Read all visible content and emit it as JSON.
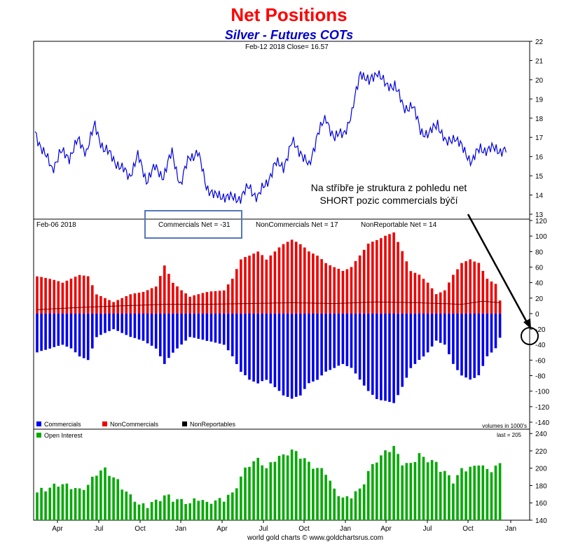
{
  "header": {
    "title": "Net Positions",
    "subtitle": "Silver - Futures COTs"
  },
  "price_panel": {
    "info": "Feb-12  2018   Close= 16.57",
    "annotation_line1": "Na stříbře je struktura z pohledu net",
    "annotation_line2": "SHORT pozic commercials býčí"
  },
  "net_panel": {
    "date": "Feb-06  2018",
    "commercials_label": "Commercials Net = -31",
    "noncommercials_label": "NonCommercials Net = 17",
    "nonreportable_label": "NonReportable Net = 14",
    "legend": [
      "Commercials",
      "NonCommercials",
      "NonReportables"
    ]
  },
  "oi_panel": {
    "legend": "Open Interest",
    "volumes_note": "volumes in 1000's",
    "last_note": "last = 205"
  },
  "footer": {
    "credit": "world gold charts © www.goldchartsrus.com"
  },
  "colors": {
    "price_line": "#0000dd",
    "commercials": "#0000ee",
    "noncommercials": "#ee0000",
    "nonreportables": "#000000",
    "open_interest": "#00aa00",
    "highlight_box": "#5577bb"
  },
  "chart_data": [
    {
      "type": "line",
      "name": "price",
      "y_ticks": [
        13,
        14,
        15,
        16,
        17,
        18,
        19,
        20,
        21,
        22
      ],
      "ylim": [
        13,
        22
      ],
      "x_ticks": [
        "Apr",
        "Jul",
        "Oct",
        "Jan",
        "Apr",
        "Jul",
        "Oct",
        "Jan",
        "Apr",
        "Jul",
        "Oct",
        "Jan"
      ],
      "weeks": 110,
      "anchors": [
        [
          0,
          17.3
        ],
        [
          2,
          16.2
        ],
        [
          4,
          15.4
        ],
        [
          6,
          16.2
        ],
        [
          8,
          16.0
        ],
        [
          10,
          16.8
        ],
        [
          12,
          16.3
        ],
        [
          14,
          17.6
        ],
        [
          16,
          16.4
        ],
        [
          18,
          16.0
        ],
        [
          20,
          15.4
        ],
        [
          22,
          15.0
        ],
        [
          24,
          16.0
        ],
        [
          26,
          14.8
        ],
        [
          28,
          15.4
        ],
        [
          30,
          15.0
        ],
        [
          32,
          16.2
        ],
        [
          34,
          14.5
        ],
        [
          36,
          16.0
        ],
        [
          38,
          16.2
        ],
        [
          40,
          14.5
        ],
        [
          42,
          13.9
        ],
        [
          44,
          14.0
        ],
        [
          46,
          13.8
        ],
        [
          48,
          13.9
        ],
        [
          50,
          14.4
        ],
        [
          52,
          13.9
        ],
        [
          54,
          14.6
        ],
        [
          56,
          15.6
        ],
        [
          58,
          15.5
        ],
        [
          60,
          16.7
        ],
        [
          62,
          16.3
        ],
        [
          64,
          15.4
        ],
        [
          66,
          17.3
        ],
        [
          68,
          17.9
        ],
        [
          70,
          17.0
        ],
        [
          72,
          17.2
        ],
        [
          74,
          18.2
        ],
        [
          76,
          20.5
        ],
        [
          78,
          19.8
        ],
        [
          80,
          20.5
        ],
        [
          82,
          19.6
        ],
        [
          84,
          19.8
        ],
        [
          86,
          18.5
        ],
        [
          88,
          18.7
        ],
        [
          90,
          17.4
        ],
        [
          92,
          17.1
        ],
        [
          94,
          17.8
        ],
        [
          96,
          16.6
        ],
        [
          98,
          17.1
        ],
        [
          100,
          16.3
        ],
        [
          102,
          15.8
        ],
        [
          104,
          16.4
        ]
      ],
      "last_close": 16.57
    },
    {
      "type": "bar",
      "name": "net_positions",
      "y_ticks": [
        -140,
        -120,
        -100,
        -80,
        -60,
        -40,
        -20,
        0,
        20,
        40,
        60,
        80,
        100,
        120
      ],
      "ylim": [
        -140,
        120
      ],
      "weeks": 110,
      "series": [
        {
          "name": "NonCommercials",
          "anchors": [
            [
              0,
              48
            ],
            [
              3,
              45
            ],
            [
              6,
              40
            ],
            [
              8,
              45
            ],
            [
              10,
              50
            ],
            [
              12,
              48
            ],
            [
              14,
              25
            ],
            [
              18,
              15
            ],
            [
              20,
              20
            ],
            [
              22,
              25
            ],
            [
              25,
              28
            ],
            [
              28,
              35
            ],
            [
              30,
              62
            ],
            [
              32,
              40
            ],
            [
              34,
              30
            ],
            [
              36,
              22
            ],
            [
              40,
              28
            ],
            [
              44,
              30
            ],
            [
              46,
              45
            ],
            [
              48,
              70
            ],
            [
              50,
              75
            ],
            [
              52,
              80
            ],
            [
              54,
              70
            ],
            [
              56,
              80
            ],
            [
              58,
              90
            ],
            [
              60,
              95
            ],
            [
              62,
              90
            ],
            [
              64,
              80
            ],
            [
              66,
              75
            ],
            [
              68,
              65
            ],
            [
              70,
              60
            ],
            [
              72,
              55
            ],
            [
              74,
              60
            ],
            [
              76,
              75
            ],
            [
              78,
              90
            ],
            [
              80,
              95
            ],
            [
              82,
              100
            ],
            [
              84,
              105
            ],
            [
              86,
              80
            ],
            [
              88,
              55
            ],
            [
              90,
              50
            ],
            [
              92,
              40
            ],
            [
              94,
              25
            ],
            [
              96,
              30
            ],
            [
              98,
              50
            ],
            [
              100,
              65
            ],
            [
              102,
              70
            ],
            [
              104,
              65
            ],
            [
              106,
              45
            ],
            [
              108,
              38
            ],
            [
              109,
              17
            ]
          ]
        },
        {
          "name": "Commercials",
          "anchors": [
            [
              0,
              -50
            ],
            [
              3,
              -45
            ],
            [
              6,
              -40
            ],
            [
              8,
              -45
            ],
            [
              10,
              -55
            ],
            [
              12,
              -60
            ],
            [
              14,
              -30
            ],
            [
              18,
              -20
            ],
            [
              20,
              -25
            ],
            [
              22,
              -30
            ],
            [
              25,
              -35
            ],
            [
              28,
              -45
            ],
            [
              30,
              -65
            ],
            [
              32,
              -50
            ],
            [
              34,
              -40
            ],
            [
              36,
              -30
            ],
            [
              40,
              -35
            ],
            [
              44,
              -40
            ],
            [
              46,
              -55
            ],
            [
              48,
              -75
            ],
            [
              50,
              -85
            ],
            [
              52,
              -90
            ],
            [
              54,
              -85
            ],
            [
              56,
              -95
            ],
            [
              58,
              -105
            ],
            [
              60,
              -110
            ],
            [
              62,
              -105
            ],
            [
              64,
              -90
            ],
            [
              66,
              -85
            ],
            [
              68,
              -75
            ],
            [
              70,
              -70
            ],
            [
              72,
              -65
            ],
            [
              74,
              -70
            ],
            [
              76,
              -85
            ],
            [
              78,
              -100
            ],
            [
              80,
              -110
            ],
            [
              82,
              -113
            ],
            [
              84,
              -115
            ],
            [
              86,
              -95
            ],
            [
              88,
              -70
            ],
            [
              90,
              -60
            ],
            [
              92,
              -50
            ],
            [
              94,
              -35
            ],
            [
              96,
              -40
            ],
            [
              98,
              -65
            ],
            [
              100,
              -80
            ],
            [
              102,
              -85
            ],
            [
              104,
              -80
            ],
            [
              106,
              -55
            ],
            [
              108,
              -45
            ],
            [
              109,
              -31
            ]
          ]
        },
        {
          "name": "NonReportables",
          "anchors": [
            [
              0,
              5
            ],
            [
              10,
              8
            ],
            [
              20,
              10
            ],
            [
              30,
              12
            ],
            [
              40,
              12
            ],
            [
              50,
              13
            ],
            [
              60,
              14
            ],
            [
              70,
              13
            ],
            [
              80,
              15
            ],
            [
              90,
              14
            ],
            [
              100,
              12
            ],
            [
              105,
              16
            ],
            [
              109,
              14
            ]
          ]
        }
      ]
    },
    {
      "type": "bar",
      "name": "open_interest",
      "y_ticks": [
        140,
        160,
        180,
        200,
        220,
        240
      ],
      "ylim": [
        140,
        245
      ],
      "weeks": 110,
      "anchors": [
        [
          0,
          172
        ],
        [
          3,
          178
        ],
        [
          6,
          182
        ],
        [
          8,
          178
        ],
        [
          10,
          175
        ],
        [
          12,
          180
        ],
        [
          14,
          195
        ],
        [
          16,
          198
        ],
        [
          18,
          190
        ],
        [
          20,
          178
        ],
        [
          22,
          168
        ],
        [
          24,
          158
        ],
        [
          26,
          157
        ],
        [
          28,
          162
        ],
        [
          30,
          168
        ],
        [
          32,
          165
        ],
        [
          34,
          162
        ],
        [
          36,
          160
        ],
        [
          38,
          165
        ],
        [
          40,
          160
        ],
        [
          42,
          162
        ],
        [
          44,
          165
        ],
        [
          46,
          170
        ],
        [
          48,
          190
        ],
        [
          50,
          205
        ],
        [
          52,
          210
        ],
        [
          54,
          200
        ],
        [
          56,
          210
        ],
        [
          58,
          215
        ],
        [
          60,
          220
        ],
        [
          62,
          215
        ],
        [
          64,
          205
        ],
        [
          66,
          200
        ],
        [
          68,
          195
        ],
        [
          70,
          175
        ],
        [
          72,
          165
        ],
        [
          74,
          168
        ],
        [
          76,
          175
        ],
        [
          78,
          195
        ],
        [
          80,
          210
        ],
        [
          82,
          218
        ],
        [
          84,
          225
        ],
        [
          86,
          205
        ],
        [
          88,
          205
        ],
        [
          90,
          215
        ],
        [
          92,
          210
        ],
        [
          94,
          205
        ],
        [
          96,
          195
        ],
        [
          98,
          185
        ],
        [
          100,
          198
        ],
        [
          102,
          200
        ],
        [
          104,
          205
        ],
        [
          106,
          198
        ],
        [
          108,
          200
        ],
        [
          109,
          205
        ]
      ]
    }
  ]
}
